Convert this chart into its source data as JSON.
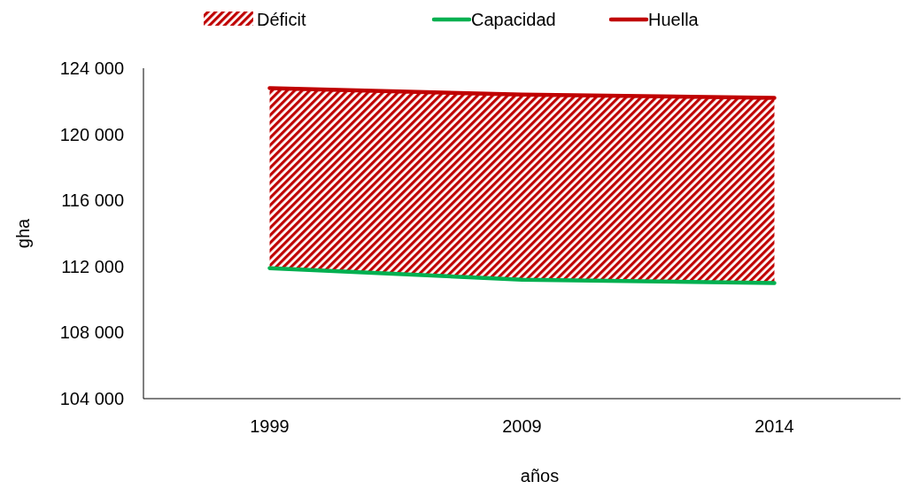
{
  "chart_data": {
    "type": "line",
    "xlabel": "años",
    "ylabel": "gha",
    "categories": [
      "1999",
      "2009",
      "2014"
    ],
    "annotations": [
      "Déficit"
    ],
    "series": [
      {
        "name": "Capacidad",
        "color": "#00b050",
        "values": [
          111900,
          111200,
          111000
        ]
      },
      {
        "name": "Huella",
        "color": "#c00000",
        "values": [
          122800,
          122400,
          122200
        ],
        "lower": [
          111900,
          111200,
          111000
        ],
        "upper": [
          122800,
          122400,
          122200
        ]
      }
    ],
    "ylim": [
      104000,
      124000
    ],
    "yticks": [
      {
        "value": 104000,
        "label": "104 000"
      },
      {
        "value": 108000,
        "label": "108 000"
      },
      {
        "value": 112000,
        "label": "112 000"
      },
      {
        "value": 116000,
        "label": "116 000"
      },
      {
        "value": 120000,
        "label": "120 000"
      },
      {
        "value": 124000,
        "label": "124 000"
      }
    ],
    "grid": false,
    "legend": "top",
    "marker": "none",
    "line_style": "solid"
  }
}
